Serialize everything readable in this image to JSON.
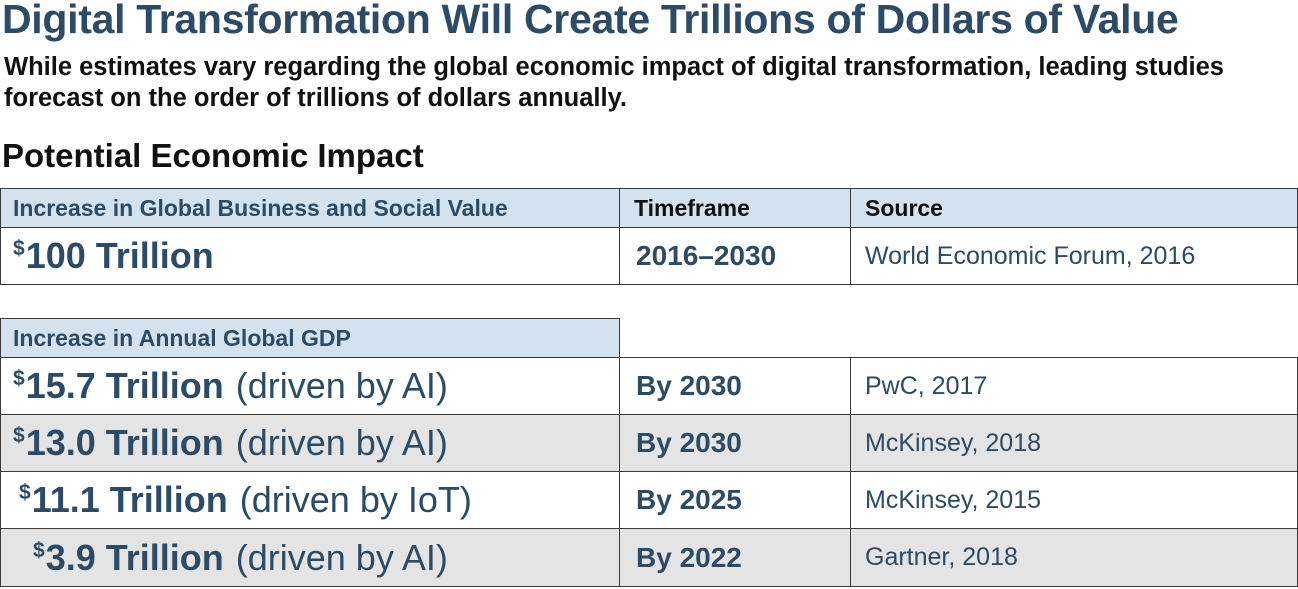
{
  "title": "Digital Transformation Will Create Trillions of Dollars of Value",
  "subtitle": "While estimates vary regarding the global economic impact of digital transformation, leading studies forecast on the order of trillions of dollars annually.",
  "section_title": "Potential Economic Impact",
  "table1": {
    "headers": [
      "Increase in Global Business and Social Value",
      "Timeframe",
      "Source"
    ],
    "row": {
      "currency": "$",
      "amount": "100 Trillion",
      "timeframe": "2016–2030",
      "source": "World Economic Forum, 2016"
    }
  },
  "table2": {
    "header": "Increase in Annual Global GDP",
    "rows": [
      {
        "currency": "$",
        "amount": "15.7 Trillion",
        "note": "(driven by AI)",
        "timeframe": "By 2030",
        "source": "PwC, 2017"
      },
      {
        "currency": "$",
        "amount": "13.0 Trillion",
        "note": "(driven by AI)",
        "timeframe": "By 2030",
        "source": "McKinsey, 2018"
      },
      {
        "currency": "$",
        "amount": "11.1 Trillion",
        "note": "(driven by IoT)",
        "timeframe": "By 2025",
        "source": "McKinsey, 2015"
      },
      {
        "currency": "$",
        "amount": "3.9 Trillion",
        "note": "(driven by AI)",
        "timeframe": "By 2022",
        "source": "Gartner, 2018"
      }
    ]
  }
}
